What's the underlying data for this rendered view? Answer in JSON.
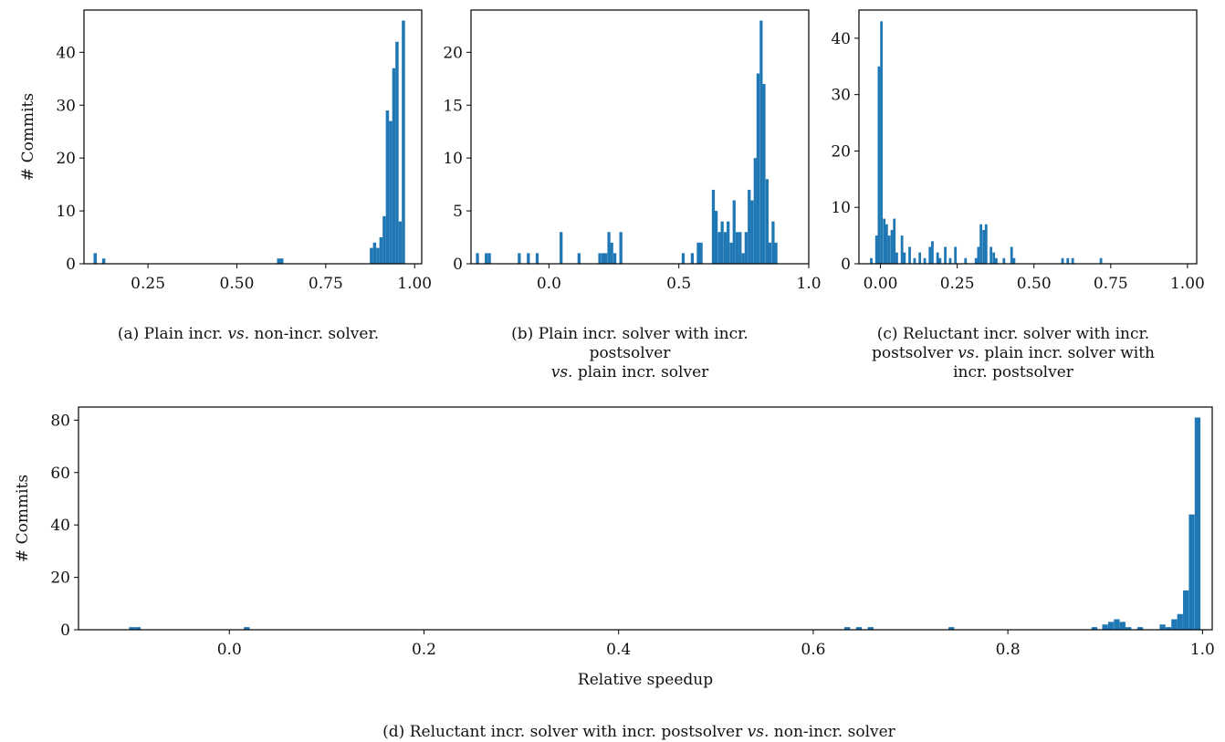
{
  "colors": {
    "bar": "#1f77b4",
    "axis": "#000000",
    "text": "#111111"
  },
  "captions": {
    "a": {
      "lines": [
        [
          {
            "t": "(a) Plain incr. "
          },
          {
            "t": "vs.",
            "i": true
          },
          {
            "t": " non-incr. solver."
          }
        ]
      ]
    },
    "b": {
      "lines": [
        [
          {
            "t": "(b) Plain incr. solver with incr."
          }
        ],
        [
          {
            "t": "postsolver"
          }
        ],
        [
          {
            "t": "vs.",
            "i": true
          },
          {
            "t": " plain incr. solver"
          }
        ]
      ]
    },
    "c": {
      "lines": [
        [
          {
            "t": "(c) Reluctant incr. solver with incr."
          }
        ],
        [
          {
            "t": "postsolver "
          },
          {
            "t": "vs.",
            "i": true
          },
          {
            "t": " plain incr. solver with"
          }
        ],
        [
          {
            "t": "incr. postsolver"
          }
        ]
      ]
    },
    "d": {
      "lines": [
        [
          {
            "t": "(d) Reluctant incr. solver with incr. postsolver "
          },
          {
            "t": "vs.",
            "i": true
          },
          {
            "t": " non-incr. solver"
          }
        ]
      ]
    }
  },
  "chart_data": [
    {
      "id": "a",
      "type": "bar",
      "ylabel": "# Commits",
      "xlabel": "",
      "xlim": [
        0.07,
        1.02
      ],
      "ylim": [
        0,
        48
      ],
      "bin_width": 0.009,
      "xticks": [
        0.25,
        0.5,
        0.75,
        1.0
      ],
      "xtick_labels": [
        "0.25",
        "0.50",
        "0.75",
        "1.00"
      ],
      "yticks": [
        0,
        10,
        20,
        30,
        40
      ],
      "ytick_labels": [
        "0",
        "10",
        "20",
        "30",
        "40"
      ],
      "x": [
        0.097,
        0.121,
        0.613,
        0.622,
        0.874,
        0.883,
        0.892,
        0.901,
        0.91,
        0.919,
        0.928,
        0.937,
        0.946,
        0.955,
        0.964
      ],
      "values": [
        2,
        1,
        1,
        1,
        3,
        4,
        3,
        5,
        9,
        29,
        27,
        37,
        42,
        8,
        46
      ]
    },
    {
      "id": "b",
      "type": "bar",
      "ylabel": "",
      "xlabel": "",
      "xlim": [
        -0.3,
        1.0
      ],
      "ylim": [
        0,
        24
      ],
      "bin_width": 0.0115,
      "xticks": [
        0.0,
        0.5,
        1.0
      ],
      "xtick_labels": [
        "0.0",
        "0.5",
        "1.0"
      ],
      "yticks": [
        0,
        5,
        10,
        15,
        20
      ],
      "ytick_labels": [
        "0",
        "5",
        "10",
        "15",
        "20"
      ],
      "x": [
        -0.281,
        -0.247,
        -0.235,
        -0.12,
        -0.085,
        -0.051,
        0.041,
        0.11,
        0.19,
        0.202,
        0.213,
        0.225,
        0.236,
        0.248,
        0.271,
        0.511,
        0.546,
        0.569,
        0.58,
        0.627,
        0.638,
        0.65,
        0.661,
        0.673,
        0.684,
        0.696,
        0.707,
        0.719,
        0.73,
        0.742,
        0.753,
        0.765,
        0.776,
        0.788,
        0.799,
        0.811,
        0.822,
        0.834,
        0.845,
        0.857,
        0.868
      ],
      "values": [
        1,
        1,
        1,
        1,
        1,
        1,
        3,
        1,
        1,
        1,
        1,
        3,
        2,
        1,
        3,
        1,
        1,
        2,
        2,
        7,
        5,
        3,
        4,
        3,
        4,
        2,
        6,
        3,
        3,
        1,
        3,
        7,
        6,
        10,
        18,
        23,
        17,
        8,
        2,
        4,
        2
      ]
    },
    {
      "id": "c",
      "type": "bar",
      "ylabel": "",
      "xlabel": "",
      "xlim": [
        -0.07,
        1.03
      ],
      "ylim": [
        0,
        45
      ],
      "bin_width": 0.0083,
      "xticks": [
        0.0,
        0.25,
        0.5,
        0.75,
        1.0
      ],
      "xtick_labels": [
        "0.00",
        "0.25",
        "0.50",
        "0.75",
        "1.00"
      ],
      "yticks": [
        0,
        10,
        20,
        30,
        40
      ],
      "ytick_labels": [
        "0",
        "10",
        "20",
        "30",
        "40"
      ],
      "x": [
        -0.034,
        -0.017,
        -0.009,
        -0.001,
        0.008,
        0.016,
        0.024,
        0.033,
        0.041,
        0.049,
        0.066,
        0.074,
        0.091,
        0.107,
        0.124,
        0.14,
        0.157,
        0.165,
        0.182,
        0.19,
        0.207,
        0.223,
        0.24,
        0.273,
        0.307,
        0.315,
        0.323,
        0.332,
        0.34,
        0.356,
        0.365,
        0.373,
        0.398,
        0.423,
        0.431,
        0.589,
        0.606,
        0.622,
        0.714
      ],
      "values": [
        1,
        5,
        35,
        43,
        8,
        7,
        5,
        6,
        8,
        2,
        5,
        2,
        3,
        1,
        2,
        1,
        3,
        4,
        2,
        1,
        3,
        1,
        3,
        1,
        1,
        3,
        7,
        6,
        7,
        3,
        2,
        1,
        1,
        3,
        1,
        1,
        1,
        1,
        1
      ]
    },
    {
      "id": "d",
      "type": "bar",
      "ylabel": "# Commits",
      "xlabel": "Relative speedup",
      "xlim": [
        -0.155,
        1.01
      ],
      "ylim": [
        0,
        85
      ],
      "bin_width": 0.0059,
      "xticks": [
        0.0,
        0.2,
        0.4,
        0.6,
        0.8,
        1.0
      ],
      "xtick_labels": [
        "0.0",
        "0.2",
        "0.4",
        "0.6",
        "0.8",
        "1.0"
      ],
      "yticks": [
        0,
        20,
        40,
        60,
        80
      ],
      "ytick_labels": [
        "0",
        "20",
        "40",
        "60",
        "80"
      ],
      "x": [
        -0.103,
        -0.097,
        0.015,
        0.632,
        0.644,
        0.656,
        0.739,
        0.886,
        0.897,
        0.903,
        0.909,
        0.915,
        0.921,
        0.933,
        0.956,
        0.962,
        0.968,
        0.974,
        0.98,
        0.986,
        0.992
      ],
      "values": [
        1,
        1,
        1,
        1,
        1,
        1,
        1,
        1,
        2,
        3,
        4,
        3,
        1,
        1,
        2,
        1,
        4,
        6,
        15,
        44,
        81
      ]
    }
  ]
}
